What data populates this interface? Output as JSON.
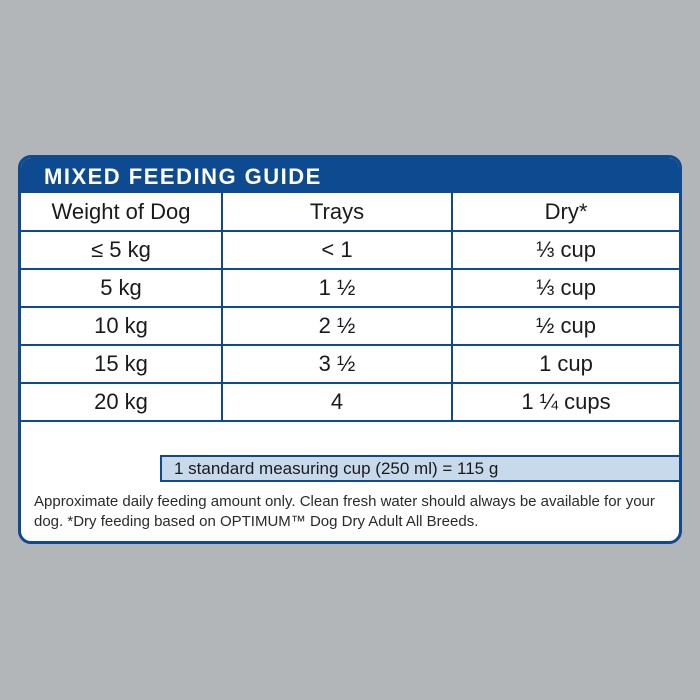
{
  "guide": {
    "title": "MIXED FEEDING GUIDE",
    "columns": [
      "Weight of Dog",
      "Trays",
      "Dry*"
    ],
    "rows": [
      [
        "≤ 5 kg",
        "< 1",
        "⅓ cup"
      ],
      [
        "5 kg",
        "1 ½",
        "⅓ cup"
      ],
      [
        "10 kg",
        "2 ½",
        "½ cup"
      ],
      [
        "15 kg",
        "3 ½",
        "1 cup"
      ],
      [
        "20 kg",
        "4",
        "1 ¼ cups"
      ]
    ],
    "measuring_note": "1 standard measuring cup (250 ml) = 115 g",
    "footer": "Approximate daily feeding amount only. Clean fresh water should always be available for your dog.  *Dry feeding based on OPTIMUM™ Dog Dry Adult All Breeds."
  },
  "colors": {
    "background": "#b3b6b9",
    "brand_blue": "#0d4a8f",
    "note_fill": "#c7d9ea"
  }
}
